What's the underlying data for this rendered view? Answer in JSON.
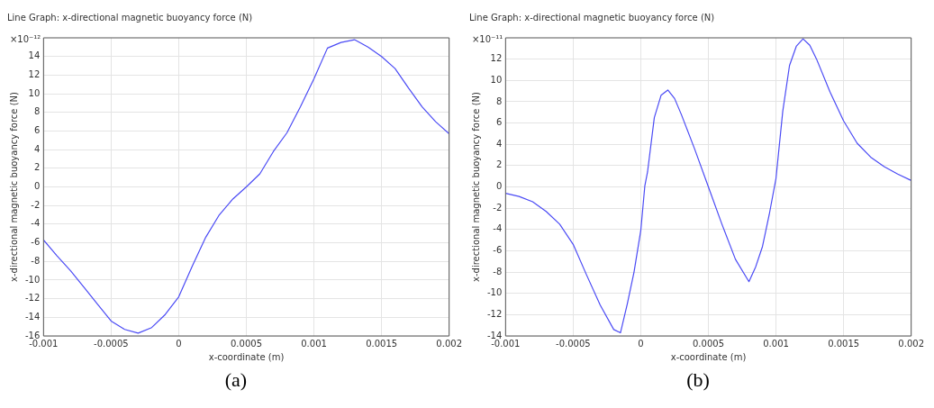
{
  "chart_data": [
    {
      "type": "line",
      "title": "Line Graph: x-directional magnetic buoyancy force (N)",
      "xlabel": "x-coordinate (m)",
      "ylabel": "x-directional magnetic buoyancy force (N)",
      "annotations": [
        "×10⁻¹²",
        "(a)"
      ],
      "x": [
        -0.001,
        -0.0009,
        -0.0008,
        -0.0007,
        -0.0006,
        -0.0005,
        -0.0004,
        -0.0003,
        -0.0002,
        -0.0001,
        0,
        0.0001,
        0.0002,
        0.0003,
        0.0004,
        0.0005,
        0.0006,
        0.0007,
        0.0008,
        0.0009,
        0.001,
        0.0011,
        0.0012,
        0.0013,
        0.0014,
        0.0015,
        0.0016,
        0.0017,
        0.0018,
        0.0019,
        0.002
      ],
      "series": [
        {
          "color": "#4b4bf5",
          "values": [
            -5.7,
            -7.4,
            -9,
            -10.8,
            -12.6,
            -14.4,
            -15.3,
            -15.7,
            -15.1,
            -13.7,
            -11.8,
            -8.5,
            -5.4,
            -3,
            -1.3,
            0,
            1.4,
            3.8,
            5.8,
            8.6,
            11.6,
            14.9,
            15.5,
            15.8,
            15,
            14,
            12.7,
            10.6,
            8.6,
            7,
            5.7
          ]
        }
      ],
      "xlim": [
        -0.001,
        0.002
      ],
      "ylim": [
        -16,
        16
      ],
      "xticks": [
        -0.001,
        -0.0005,
        0,
        0.0005,
        0.001,
        0.0015,
        0.002
      ],
      "yticks": [
        -16,
        -14,
        -12,
        -10,
        -8,
        -6,
        -4,
        -2,
        0,
        2,
        4,
        6,
        8,
        10,
        12,
        14
      ],
      "grid": true
    },
    {
      "type": "line",
      "title": "Line Graph: x-directional magnetic buoyancy force (N)",
      "xlabel": "x-coordinate (m)",
      "ylabel": "x-directional magnetic buoyancy force (N)",
      "annotations": [
        "×10⁻¹¹",
        "(b)"
      ],
      "x": [
        -0.001,
        -0.0009,
        -0.0008,
        -0.0007,
        -0.0006,
        -0.0005,
        -0.0004,
        -0.0003,
        -0.0002,
        -0.00015,
        -0.0001,
        -5e-05,
        0,
        3e-05,
        5e-05,
        0.0001,
        0.00015,
        0.0002,
        0.00025,
        0.0003,
        0.0004,
        0.0005,
        0.0006,
        0.0007,
        0.0008,
        0.00085,
        0.0009,
        0.00095,
        0.001,
        0.00105,
        0.0011,
        0.00115,
        0.0012,
        0.00125,
        0.0013,
        0.0014,
        0.0015,
        0.0016,
        0.0017,
        0.0018,
        0.0019,
        0.002
      ],
      "series": [
        {
          "color": "#4b4bf5",
          "values": [
            -0.6,
            -0.9,
            -1.4,
            -2.3,
            -3.5,
            -5.4,
            -8.3,
            -11.1,
            -13.4,
            -13.7,
            -11,
            -8,
            -4.1,
            0.1,
            1.4,
            6.5,
            8.6,
            9.1,
            8.3,
            6.8,
            3.5,
            0,
            -3.5,
            -6.8,
            -8.9,
            -7.5,
            -5.6,
            -2.6,
            0.8,
            7.1,
            11.4,
            13.2,
            13.9,
            13.3,
            12,
            8.9,
            6.2,
            4.1,
            2.8,
            1.9,
            1.2,
            0.6
          ]
        }
      ],
      "xlim": [
        -0.001,
        0.002
      ],
      "ylim": [
        -14,
        14
      ],
      "xticks": [
        -0.001,
        -0.0005,
        0,
        0.0005,
        0.001,
        0.0015,
        0.002
      ],
      "yticks": [
        -14,
        -12,
        -10,
        -8,
        -6,
        -4,
        -2,
        0,
        2,
        4,
        6,
        8,
        10,
        12
      ],
      "grid": true
    }
  ]
}
